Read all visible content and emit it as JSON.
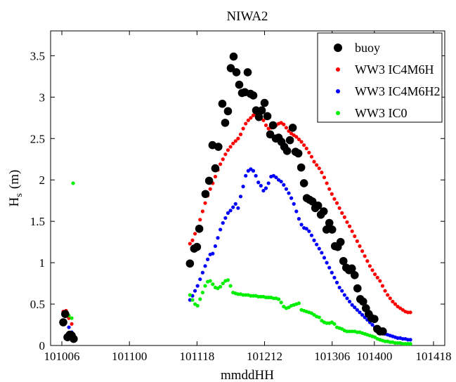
{
  "chart_data": {
    "type": "scatter",
    "title": "NIWA2",
    "xlabel": "mmddHH",
    "ylabel_main": "H",
    "ylabel_sub": "s",
    "ylabel_unit": "(m)",
    "xlim": [
      0,
      140
    ],
    "ylim": [
      0,
      3.8
    ],
    "xticks": [
      {
        "value": 4,
        "label": "101006"
      },
      {
        "value": 28,
        "label": "101100"
      },
      {
        "value": 52,
        "label": "101118"
      },
      {
        "value": 76,
        "label": "101212"
      },
      {
        "value": 100,
        "label": "101306"
      },
      {
        "value": 115,
        "label": "101400"
      },
      {
        "value": 136,
        "label": "101418"
      }
    ],
    "yticks": [
      0,
      0.5,
      1,
      1.5,
      2,
      2.5,
      3,
      3.5
    ],
    "legend_position": "top-right",
    "series": [
      {
        "name": "buoy",
        "color": "#000000",
        "marker": "large-dot",
        "points": [
          [
            4.5,
            0.28
          ],
          [
            5.2,
            0.38
          ],
          [
            6.0,
            0.1
          ],
          [
            6.8,
            0.13
          ],
          [
            7.5,
            0.12
          ],
          [
            8.2,
            0.08
          ],
          [
            49.5,
            0.99
          ],
          [
            51.0,
            1.17
          ],
          [
            52.0,
            1.19
          ],
          [
            52.8,
            1.41
          ],
          [
            55.0,
            1.83
          ],
          [
            56.3,
            1.99
          ],
          [
            57.5,
            2.42
          ],
          [
            58.5,
            2.14
          ],
          [
            59.6,
            2.4
          ],
          [
            61.0,
            2.92
          ],
          [
            62.0,
            2.69
          ],
          [
            63.0,
            2.83
          ],
          [
            64.0,
            3.35
          ],
          [
            65.0,
            3.49
          ],
          [
            66.0,
            3.3
          ],
          [
            67.0,
            3.15
          ],
          [
            68.0,
            3.05
          ],
          [
            69.0,
            3.06
          ],
          [
            70.0,
            3.3
          ],
          [
            71.0,
            3.04
          ],
          [
            72.0,
            3.02
          ],
          [
            73.0,
            2.84
          ],
          [
            74.0,
            2.76
          ],
          [
            75.0,
            2.84
          ],
          [
            76.0,
            2.93
          ],
          [
            77.0,
            2.77
          ],
          [
            78.0,
            2.55
          ],
          [
            79.0,
            2.66
          ],
          [
            80.0,
            2.5
          ],
          [
            81.0,
            2.51
          ],
          [
            82.0,
            2.46
          ],
          [
            83.0,
            2.4
          ],
          [
            84.0,
            2.35
          ],
          [
            85.0,
            2.48
          ],
          [
            86.0,
            2.63
          ],
          [
            87.0,
            2.34
          ],
          [
            88.0,
            2.32
          ],
          [
            89.0,
            2.15
          ],
          [
            90.0,
            1.96
          ],
          [
            91.0,
            1.78
          ],
          [
            92.0,
            1.76
          ],
          [
            93.0,
            1.74
          ],
          [
            94.0,
            1.66
          ],
          [
            95.0,
            1.69
          ],
          [
            96.0,
            1.58
          ],
          [
            97.0,
            1.62
          ],
          [
            98.0,
            1.4
          ],
          [
            99.0,
            1.48
          ],
          [
            100.0,
            1.4
          ],
          [
            101.0,
            1.2
          ],
          [
            102.0,
            1.19
          ],
          [
            103.0,
            1.25
          ],
          [
            104.0,
            1.02
          ],
          [
            105.0,
            0.94
          ],
          [
            106.0,
            0.91
          ],
          [
            107.0,
            0.93
          ],
          [
            108.0,
            0.85
          ],
          [
            109.0,
            0.69
          ],
          [
            110.0,
            0.56
          ],
          [
            111.0,
            0.53
          ],
          [
            112.0,
            0.45
          ],
          [
            113.0,
            0.38
          ],
          [
            114.0,
            0.33
          ],
          [
            115.0,
            0.32
          ],
          [
            116.0,
            0.2
          ],
          [
            117.0,
            0.17
          ],
          [
            118.0,
            0.17
          ]
        ]
      },
      {
        "name": "WW3 IC4M6H",
        "color": "#ff0000",
        "marker": "small-dot",
        "x_start": 49.5,
        "x_step": 0.9,
        "prefix_points": [
          [
            4.5,
            0.41
          ],
          [
            5.5,
            0.42
          ],
          [
            6.5,
            0.33
          ],
          [
            7.5,
            0.26
          ]
        ],
        "values": [
          1.23,
          1.27,
          1.35,
          1.43,
          1.52,
          1.62,
          1.72,
          1.81,
          1.89,
          1.96,
          2.04,
          2.12,
          2.19,
          2.25,
          2.31,
          2.36,
          2.4,
          2.44,
          2.47,
          2.5,
          2.55,
          2.62,
          2.68,
          2.72,
          2.75,
          2.78,
          2.8,
          2.79,
          2.77,
          2.72,
          2.66,
          2.62,
          2.63,
          2.64,
          2.66,
          2.68,
          2.69,
          2.67,
          2.63,
          2.59,
          2.56,
          2.54,
          2.52,
          2.49,
          2.46,
          2.42,
          2.38,
          2.33,
          2.28,
          2.22,
          2.18,
          2.14,
          2.09,
          2.03,
          1.96,
          1.89,
          1.83,
          1.77,
          1.72,
          1.66,
          1.6,
          1.55,
          1.49,
          1.44,
          1.38,
          1.32,
          1.26,
          1.2,
          1.14,
          1.08,
          1.02,
          0.96,
          0.91,
          0.86,
          0.82,
          0.78,
          0.72,
          0.66,
          0.61,
          0.57,
          0.53,
          0.5,
          0.47,
          0.45,
          0.43,
          0.41,
          0.4,
          0.4
        ]
      },
      {
        "name": "WW3 IC4M6H2",
        "color": "#0000ff",
        "marker": "small-dot",
        "x_start": 49.5,
        "x_step": 0.9,
        "prefix_points": [
          [
            4.5,
            0.39
          ],
          [
            5.5,
            0.37
          ],
          [
            6.5,
            0.22
          ],
          [
            7.5,
            0.16
          ]
        ],
        "values": [
          0.55,
          0.6,
          0.66,
          0.72,
          0.8,
          0.88,
          0.96,
          1.04,
          1.1,
          1.11,
          1.2,
          1.3,
          1.4,
          1.48,
          1.54,
          1.6,
          1.63,
          1.67,
          1.71,
          1.66,
          1.8,
          1.92,
          2.05,
          2.11,
          2.13,
          2.11,
          2.05,
          1.97,
          1.93,
          1.87,
          1.9,
          1.96,
          2.04,
          2.05,
          2.03,
          2.0,
          1.98,
          1.94,
          1.89,
          1.84,
          1.78,
          1.71,
          1.62,
          1.53,
          1.46,
          1.42,
          1.41,
          1.38,
          1.33,
          1.27,
          1.22,
          1.17,
          1.12,
          1.06,
          1.0,
          0.94,
          0.88,
          0.82,
          0.76,
          0.7,
          0.66,
          0.61,
          0.57,
          0.53,
          0.49,
          0.46,
          0.43,
          0.4,
          0.37,
          0.34,
          0.31,
          0.28,
          0.25,
          0.22,
          0.2,
          0.18,
          0.16,
          0.14,
          0.13,
          0.12,
          0.11,
          0.1,
          0.09,
          0.09,
          0.08,
          0.08,
          0.07,
          0.07
        ]
      },
      {
        "name": "WW3 IC0",
        "color": "#00ee00",
        "marker": "small-dot",
        "x_start": 49.5,
        "x_step": 0.9,
        "prefix_points": [
          [
            4.5,
            0.38
          ],
          [
            5.5,
            0.37
          ],
          [
            6.5,
            0.36
          ],
          [
            7.5,
            0.33
          ],
          [
            8.0,
            1.96
          ]
        ],
        "values": [
          0.61,
          0.55,
          0.5,
          0.48,
          0.56,
          0.64,
          0.72,
          0.77,
          0.78,
          0.74,
          0.7,
          0.69,
          0.71,
          0.75,
          0.78,
          0.79,
          0.72,
          0.64,
          0.63,
          0.62,
          0.62,
          0.61,
          0.61,
          0.61,
          0.6,
          0.6,
          0.6,
          0.59,
          0.59,
          0.59,
          0.58,
          0.58,
          0.58,
          0.57,
          0.57,
          0.56,
          0.52,
          0.47,
          0.45,
          0.46,
          0.48,
          0.49,
          0.5,
          0.51,
          0.43,
          0.42,
          0.41,
          0.4,
          0.39,
          0.37,
          0.35,
          0.34,
          0.3,
          0.28,
          0.27,
          0.27,
          0.28,
          0.26,
          0.22,
          0.21,
          0.2,
          0.18,
          0.17,
          0.17,
          0.17,
          0.17,
          0.16,
          0.16,
          0.15,
          0.14,
          0.13,
          0.12,
          0.11,
          0.1,
          0.08,
          0.07,
          0.06,
          0.05,
          0.05,
          0.04,
          0.04,
          0.03,
          0.03,
          0.03,
          0.02,
          0.02,
          0.02,
          0.02
        ]
      }
    ]
  }
}
